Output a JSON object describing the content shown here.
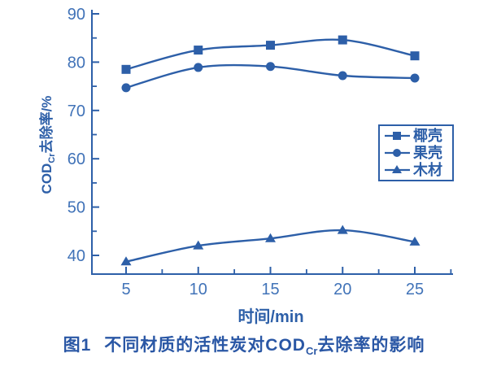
{
  "figure": {
    "caption_prefix": "图1",
    "caption_main_pre": "不同材质的活性炭对COD",
    "caption_sub": "Cr",
    "caption_main_post": "去除率的影响"
  },
  "chart_data": {
    "type": "line",
    "x": [
      5,
      10,
      15,
      20,
      25
    ],
    "xticks": [
      5,
      10,
      15,
      20,
      25
    ],
    "x_minor_ticks": [
      7.5,
      12.5,
      17.5,
      22.5,
      27.5
    ],
    "yticks": [
      40,
      50,
      60,
      70,
      80,
      90
    ],
    "y_minor_ticks": [
      45,
      55,
      65,
      75,
      85
    ],
    "ylim": [
      40,
      90
    ],
    "xlabel": "时间/min",
    "ylabel_pre": "COD",
    "ylabel_sub": "Cr",
    "ylabel_post": "去除率/%",
    "grid": false,
    "legend_position": "middle-right",
    "series": [
      {
        "name": "椰壳",
        "marker": "square",
        "values": [
          78.5,
          82.5,
          83.5,
          84.6,
          81.3
        ]
      },
      {
        "name": "果壳",
        "marker": "circle",
        "values": [
          74.7,
          78.9,
          79.1,
          77.2,
          76.7
        ]
      },
      {
        "name": "木材",
        "marker": "triangle",
        "values": [
          38.7,
          42.0,
          43.5,
          45.2,
          42.8
        ]
      }
    ]
  },
  "style": {
    "line_color": "#2d5fa8",
    "tick_label_color": "#4173b8",
    "axis_color": "#2d5fa8",
    "caption_color": "#2a57a5"
  }
}
